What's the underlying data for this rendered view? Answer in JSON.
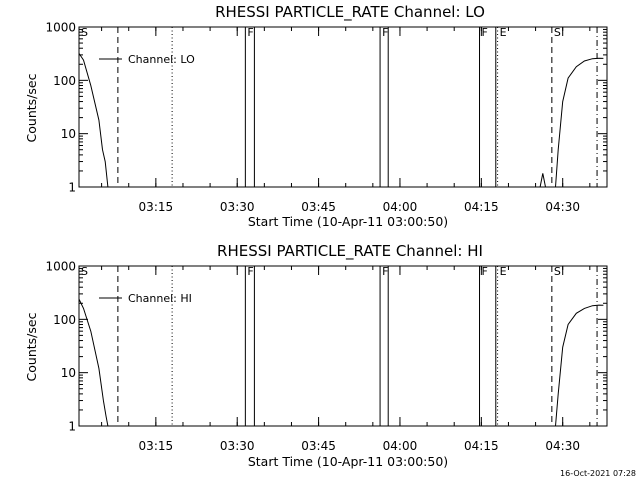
{
  "chart_data": [
    {
      "type": "line",
      "title": "RHESSI PARTICLE_RATE Channel: LO",
      "xlabel": "Start Time (10-Apr-11 03:00:50)",
      "ylabel": "Counts/sec",
      "y_scale": "log",
      "ylim": [
        1,
        1000
      ],
      "xlim": [
        "03:00:50",
        "04:38:10"
      ],
      "x_ticks": [
        "03:15",
        "03:30",
        "03:45",
        "04:00",
        "04:15",
        "04:30"
      ],
      "y_ticks": [
        "1",
        "10",
        "100",
        "1000"
      ],
      "legend": {
        "entry": "Channel: LO",
        "placement": "top-left"
      },
      "series": [
        {
          "name": "Channel: LO",
          "segments": [
            {
              "x": [
                "03:00:50",
                "03:01:40",
                "03:03:00",
                "03:04:30",
                "03:05:10",
                "03:05:40",
                "03:06:10"
              ],
              "y": [
                320,
                240,
                80,
                18,
                5,
                3,
                1
              ]
            },
            {
              "x": [
                "04:25:50",
                "04:26:20",
                "04:26:50"
              ],
              "y": [
                1,
                1.8,
                1
              ]
            },
            {
              "x": [
                "04:28:40",
                "04:29:10",
                "04:30:00",
                "04:31:00",
                "04:32:30",
                "04:34:00",
                "04:35:30",
                "04:36:40",
                "04:37:30"
              ],
              "y": [
                1,
                5,
                40,
                110,
                180,
                230,
                255,
                260,
                258
              ]
            }
          ]
        }
      ],
      "vertical_lines": [
        {
          "x": "03:08:00",
          "style": "dashed"
        },
        {
          "x": "03:18:00",
          "style": "dotted"
        },
        {
          "x": "03:31:30",
          "style": "solid"
        },
        {
          "x": "03:33:10",
          "style": "solid"
        },
        {
          "x": "03:56:20",
          "style": "solid"
        },
        {
          "x": "03:57:50",
          "style": "solid"
        },
        {
          "x": "04:14:40",
          "style": "solid"
        },
        {
          "x": "04:17:40",
          "style": "solid"
        },
        {
          "x": "04:18:00",
          "style": "dotted"
        },
        {
          "x": "04:28:00",
          "style": "dashed"
        },
        {
          "x": "04:36:20",
          "style": "dashdot"
        }
      ],
      "flags": [
        {
          "x": "03:00:50",
          "text": "S"
        },
        {
          "x": "03:31:30",
          "text": "F"
        },
        {
          "x": "03:56:20",
          "text": "F"
        },
        {
          "x": "04:14:40",
          "text": "F"
        },
        {
          "x": "04:18:00",
          "text": "E"
        },
        {
          "x": "04:28:00",
          "text": "S"
        }
      ]
    },
    {
      "type": "line",
      "title": "RHESSI PARTICLE_RATE Channel: HI",
      "xlabel": "Start Time (10-Apr-11 03:00:50)",
      "ylabel": "Counts/sec",
      "y_scale": "log",
      "ylim": [
        1,
        1000
      ],
      "xlim": [
        "03:00:50",
        "04:38:10"
      ],
      "x_ticks": [
        "03:15",
        "03:30",
        "03:45",
        "04:00",
        "04:15",
        "04:30"
      ],
      "y_ticks": [
        "1",
        "10",
        "100",
        "1000"
      ],
      "legend": {
        "entry": "Channel: HI",
        "placement": "top-left"
      },
      "series": [
        {
          "name": "Channel: HI",
          "segments": [
            {
              "x": [
                "03:00:50",
                "03:01:40",
                "03:03:00",
                "03:04:30",
                "03:05:20",
                "03:05:50",
                "03:06:10"
              ],
              "y": [
                240,
                160,
                60,
                12,
                3,
                1.5,
                1
              ]
            },
            {
              "x": [
                "04:28:40",
                "04:29:10",
                "04:30:00",
                "04:31:00",
                "04:32:30",
                "04:34:00",
                "04:35:30",
                "04:36:40",
                "04:37:30"
              ],
              "y": [
                1,
                4,
                30,
                80,
                130,
                160,
                180,
                185,
                183
              ]
            }
          ]
        }
      ],
      "vertical_lines": [
        {
          "x": "03:08:00",
          "style": "dashed"
        },
        {
          "x": "03:18:00",
          "style": "dotted"
        },
        {
          "x": "03:31:30",
          "style": "solid"
        },
        {
          "x": "03:33:10",
          "style": "solid"
        },
        {
          "x": "03:56:20",
          "style": "solid"
        },
        {
          "x": "03:57:50",
          "style": "solid"
        },
        {
          "x": "04:14:40",
          "style": "solid"
        },
        {
          "x": "04:17:40",
          "style": "solid"
        },
        {
          "x": "04:18:00",
          "style": "dotted"
        },
        {
          "x": "04:28:00",
          "style": "dashed"
        },
        {
          "x": "04:36:20",
          "style": "dashdot"
        }
      ],
      "flags": [
        {
          "x": "03:00:50",
          "text": "S"
        },
        {
          "x": "03:31:30",
          "text": "F"
        },
        {
          "x": "03:56:20",
          "text": "F"
        },
        {
          "x": "04:14:40",
          "text": "F"
        },
        {
          "x": "04:18:00",
          "text": "E"
        },
        {
          "x": "04:28:00",
          "text": "S"
        }
      ]
    }
  ],
  "footer": {
    "date": "16-Oct-2021 07:28"
  }
}
